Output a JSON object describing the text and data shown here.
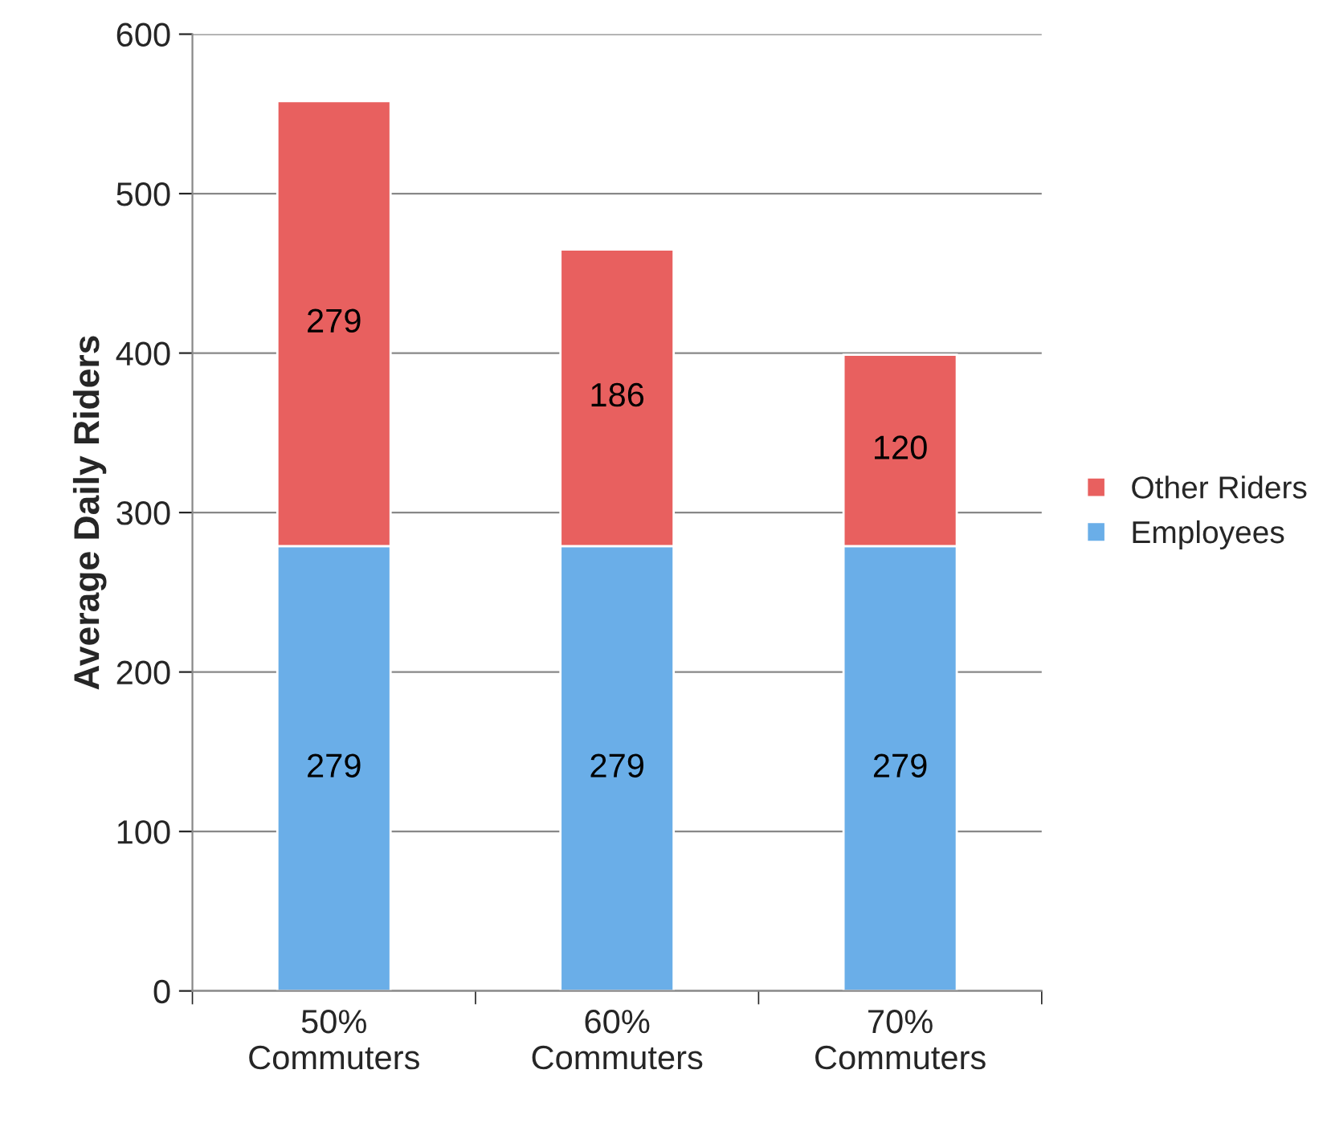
{
  "chart_data": {
    "type": "bar",
    "ylabel": "Average Daily Riders",
    "categories": [
      "50%\nCommuters",
      "60%\nCommuters",
      "70%\nCommuters"
    ],
    "stacked": true,
    "series": [
      {
        "name": "Employees",
        "color": "#6aaee8",
        "values": [
          279,
          279,
          279
        ]
      },
      {
        "name": "Other Riders",
        "color": "#e8605f",
        "values": [
          279,
          186,
          120
        ]
      }
    ],
    "ylim": [
      0,
      600
    ],
    "yticks": [
      0,
      100,
      200,
      300,
      400,
      500,
      600
    ],
    "grid": "y",
    "legend": "right",
    "data_labels": true
  }
}
